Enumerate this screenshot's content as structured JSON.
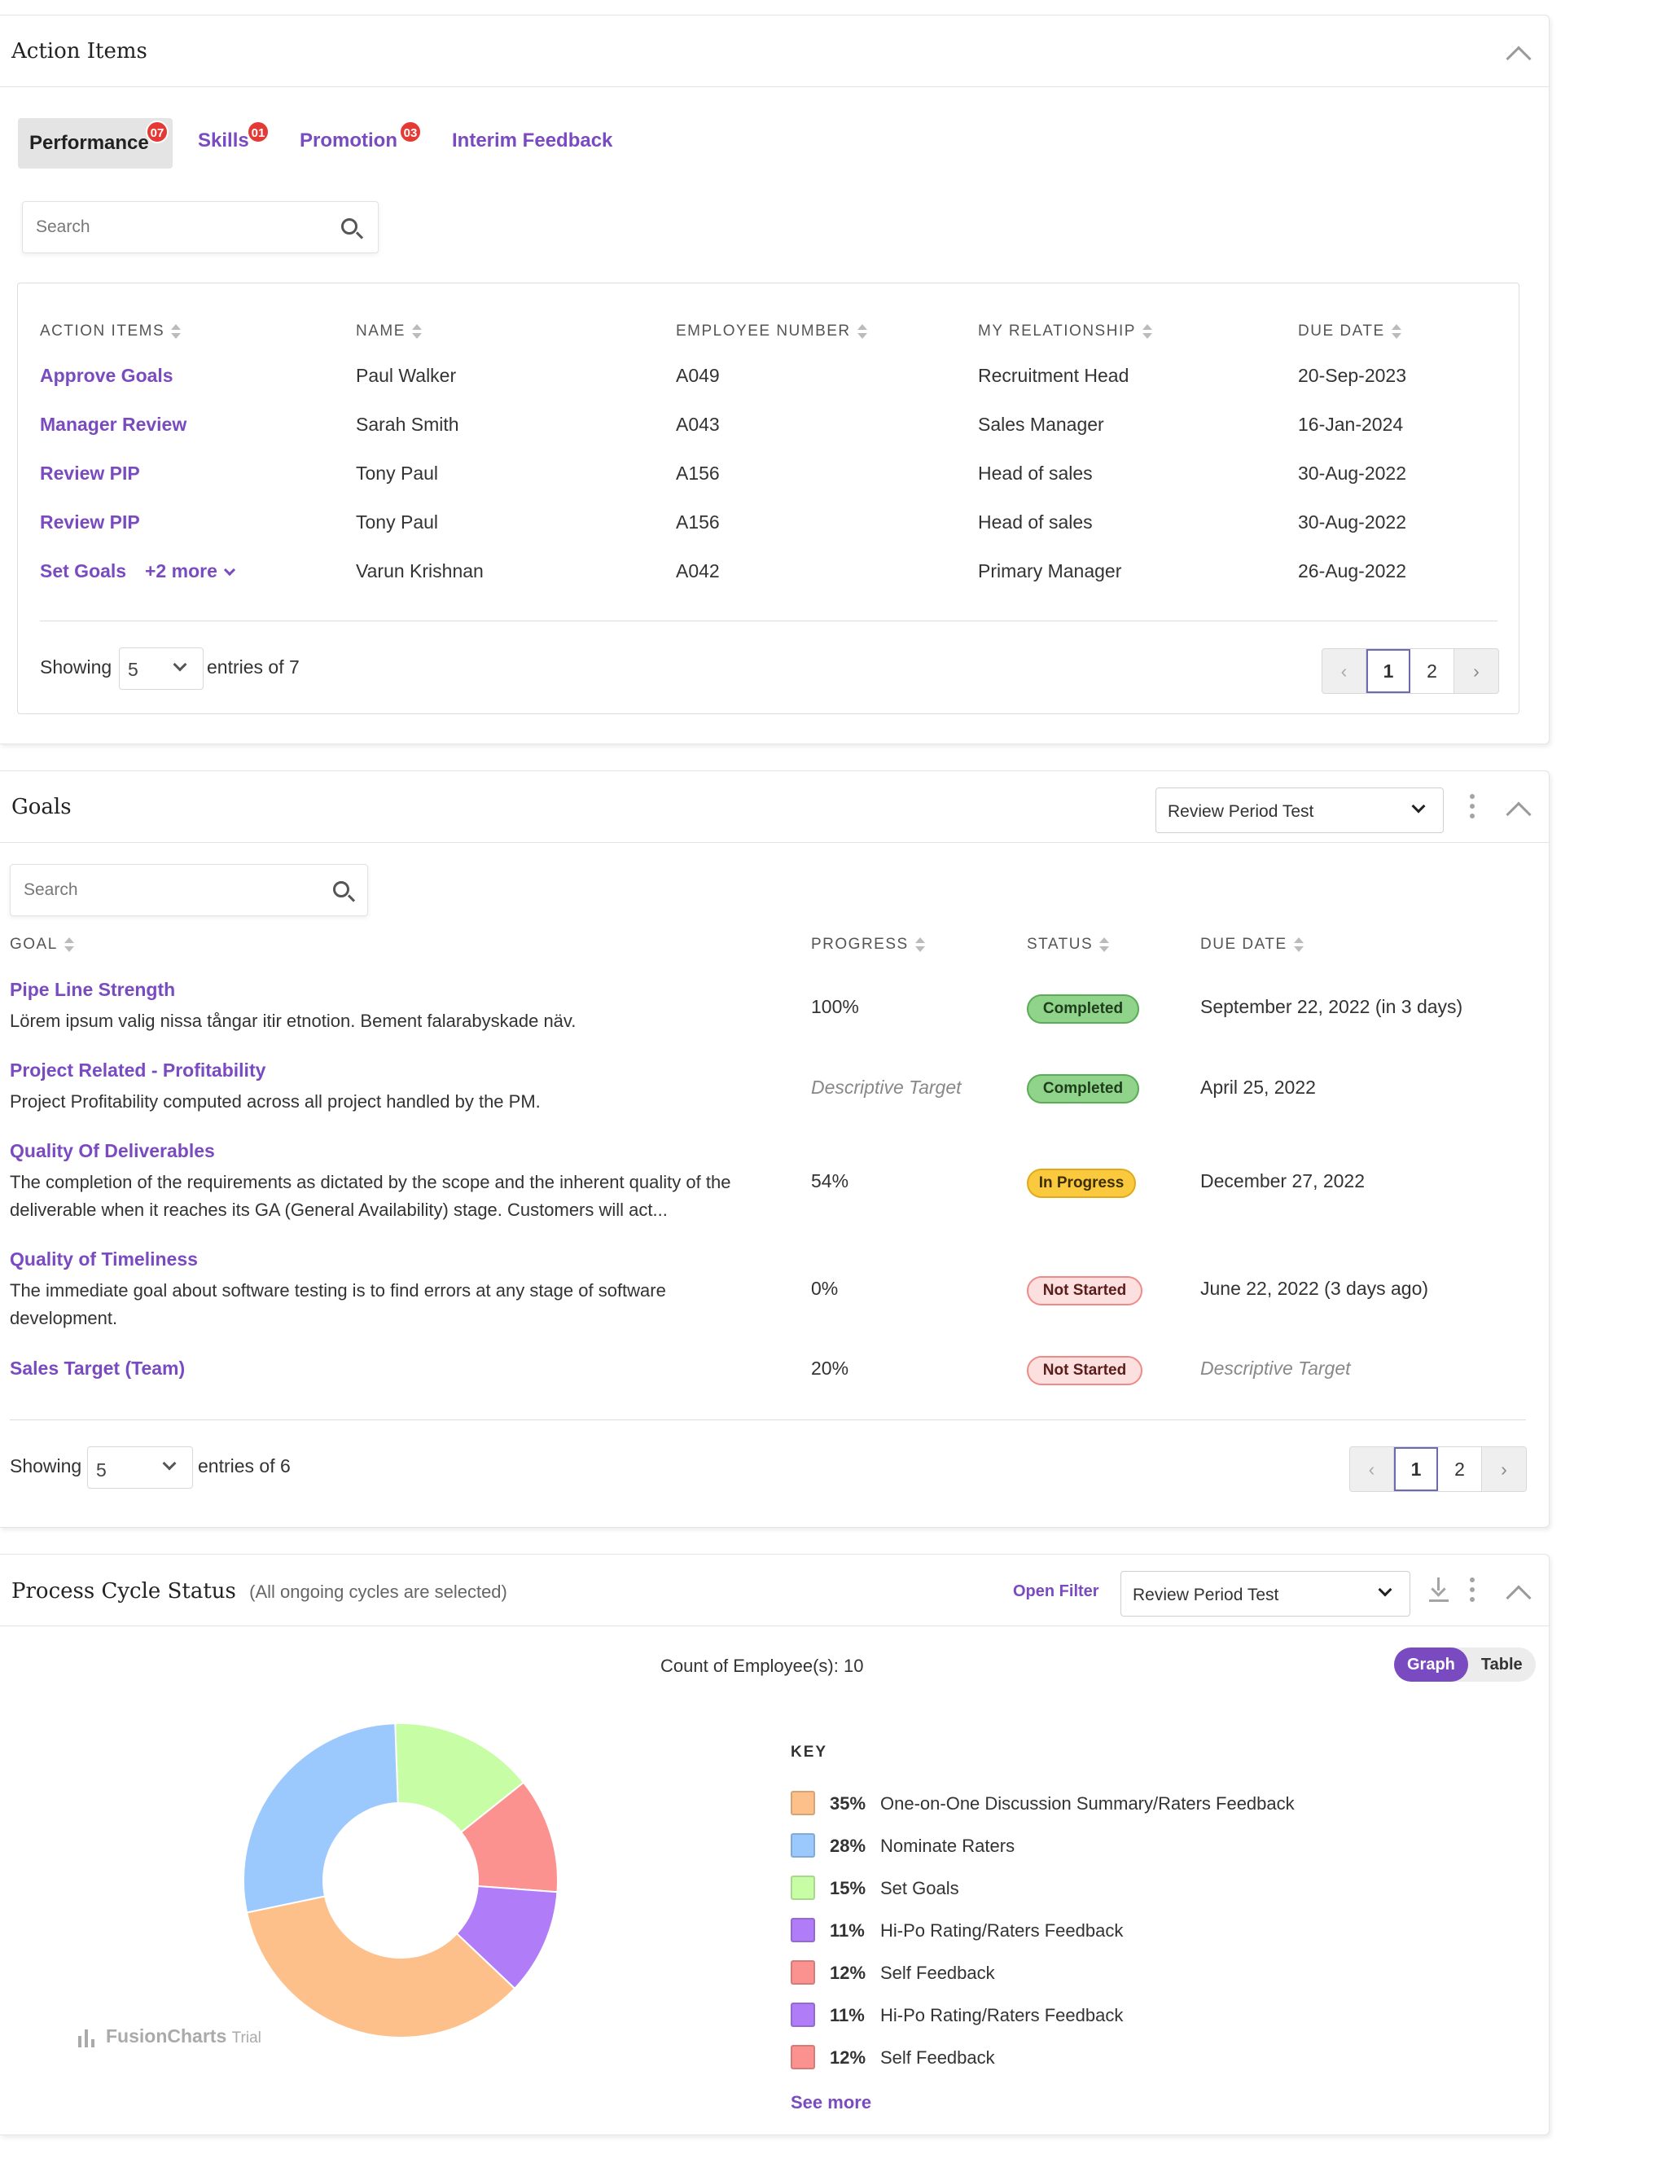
{
  "action_items": {
    "title": "Action Items",
    "tabs": [
      {
        "label": "Performance",
        "badge": "07"
      },
      {
        "label": "Skills",
        "badge": "01"
      },
      {
        "label": "Promotion",
        "badge": "03"
      },
      {
        "label": "Interim Feedback",
        "badge": ""
      }
    ],
    "search_placeholder": "Search",
    "columns": [
      "ACTION ITEMS",
      "NAME",
      "EMPLOYEE NUMBER",
      "MY RELATIONSHIP",
      "DUE DATE"
    ],
    "rows": [
      {
        "action": "Approve Goals",
        "name": "Paul Walker",
        "emp": "A049",
        "rel": "Recruitment Head",
        "due": "20-Sep-2023"
      },
      {
        "action": "Manager Review",
        "name": "Sarah Smith",
        "emp": "A043",
        "rel": "Sales Manager",
        "due": "16-Jan-2024"
      },
      {
        "action": "Review PIP",
        "name": "Tony Paul",
        "emp": "A156",
        "rel": "Head of sales",
        "due": "30-Aug-2022"
      },
      {
        "action": "Review PIP",
        "name": "Tony Paul",
        "emp": "A156",
        "rel": "Head of sales",
        "due": "30-Aug-2022"
      },
      {
        "action": "Set Goals",
        "more": "+2 more",
        "name": "Varun Krishnan",
        "emp": "A042",
        "rel": "Primary Manager",
        "due": "26-Aug-2022"
      }
    ],
    "showing_label": "Showing",
    "page_size": "5",
    "entries_label": "entries of 7",
    "pages": [
      "‹",
      "1",
      "2",
      "›"
    ]
  },
  "goals": {
    "title": "Goals",
    "period": "Review Period Test",
    "search_placeholder": "Search",
    "columns": [
      "GOAL",
      "PROGRESS",
      "STATUS",
      "DUE DATE"
    ],
    "rows": [
      {
        "title": "Pipe Line Strength",
        "desc": "Lörem ipsum valig nissa tångar itir etnotion. Bement falarabyskade näv.",
        "progress": "100%",
        "status": "Completed",
        "due": "September 22, 2022 (in 3 days)"
      },
      {
        "title": "Project Related - Profitability",
        "desc": "Project Profitability computed across all project handled by the PM.",
        "progress": "Descriptive Target",
        "status": "Completed",
        "due": "April 25, 2022"
      },
      {
        "title": "Quality Of Deliverables",
        "desc": "The completion of the requirements as dictated by the scope and the inherent quality of the deliverable when it reaches its GA (General Availability) stage. Customers will act...",
        "progress": "54%",
        "status": "In Progress",
        "due": "December 27, 2022"
      },
      {
        "title": "Quality of Timeliness",
        "desc": "The immediate goal about software testing is to find errors at any stage of software development.",
        "progress": "0%",
        "status": "Not Started",
        "due": "June 22, 2022 (3 days ago)"
      },
      {
        "title": "Sales Target (Team)",
        "desc": "",
        "progress": "20%",
        "status": "Not Started",
        "due": "Descriptive Target"
      }
    ],
    "showing_label": "Showing",
    "page_size": "5",
    "entries_label": "entries of 6",
    "pages": [
      "‹",
      "1",
      "2",
      "›"
    ]
  },
  "process_cycle": {
    "title": "Process Cycle Status",
    "subtitle": "(All ongoing cycles are selected)",
    "open_filter": "Open Filter",
    "period": "Review Period Test",
    "count_label": "Count of Employee(s): 10",
    "toggle": [
      "Graph",
      "Table"
    ],
    "key_title": "KEY",
    "see_more": "See more",
    "watermark": "FusionCharts",
    "watermark_suffix": "Trial",
    "legend": [
      {
        "pct": "35%",
        "label": "One-on-One Discussion Summary/Raters Feedback",
        "color": "#fdc08a"
      },
      {
        "pct": "28%",
        "label": "Nominate Raters",
        "color": "#9bc8fd"
      },
      {
        "pct": "15%",
        "label": "Set Goals",
        "color": "#c7fda5"
      },
      {
        "pct": "11%",
        "label": "Hi-Po Rating/Raters Feedback",
        "color": "#b07cf7"
      },
      {
        "pct": "12%",
        "label": "Self Feedback",
        "color": "#fb9290"
      },
      {
        "pct": "11%",
        "label": "Hi-Po Rating/Raters Feedback",
        "color": "#b07cf7"
      },
      {
        "pct": "12%",
        "label": "Self Feedback",
        "color": "#fb9290"
      }
    ]
  },
  "chart_data": {
    "type": "pie",
    "title": "",
    "slices": [
      {
        "label": "One-on-One Discussion Summary/Raters Feedback",
        "value": 35,
        "color": "#fdc08a"
      },
      {
        "label": "Nominate Raters",
        "value": 28,
        "color": "#9bc8fd"
      },
      {
        "label": "Set Goals",
        "value": 15,
        "color": "#c7fda5"
      },
      {
        "label": "Self Feedback",
        "value": 12,
        "color": "#fb9290"
      },
      {
        "label": "Hi-Po Rating/Raters Feedback",
        "value": 11,
        "color": "#b07cf7"
      }
    ]
  }
}
